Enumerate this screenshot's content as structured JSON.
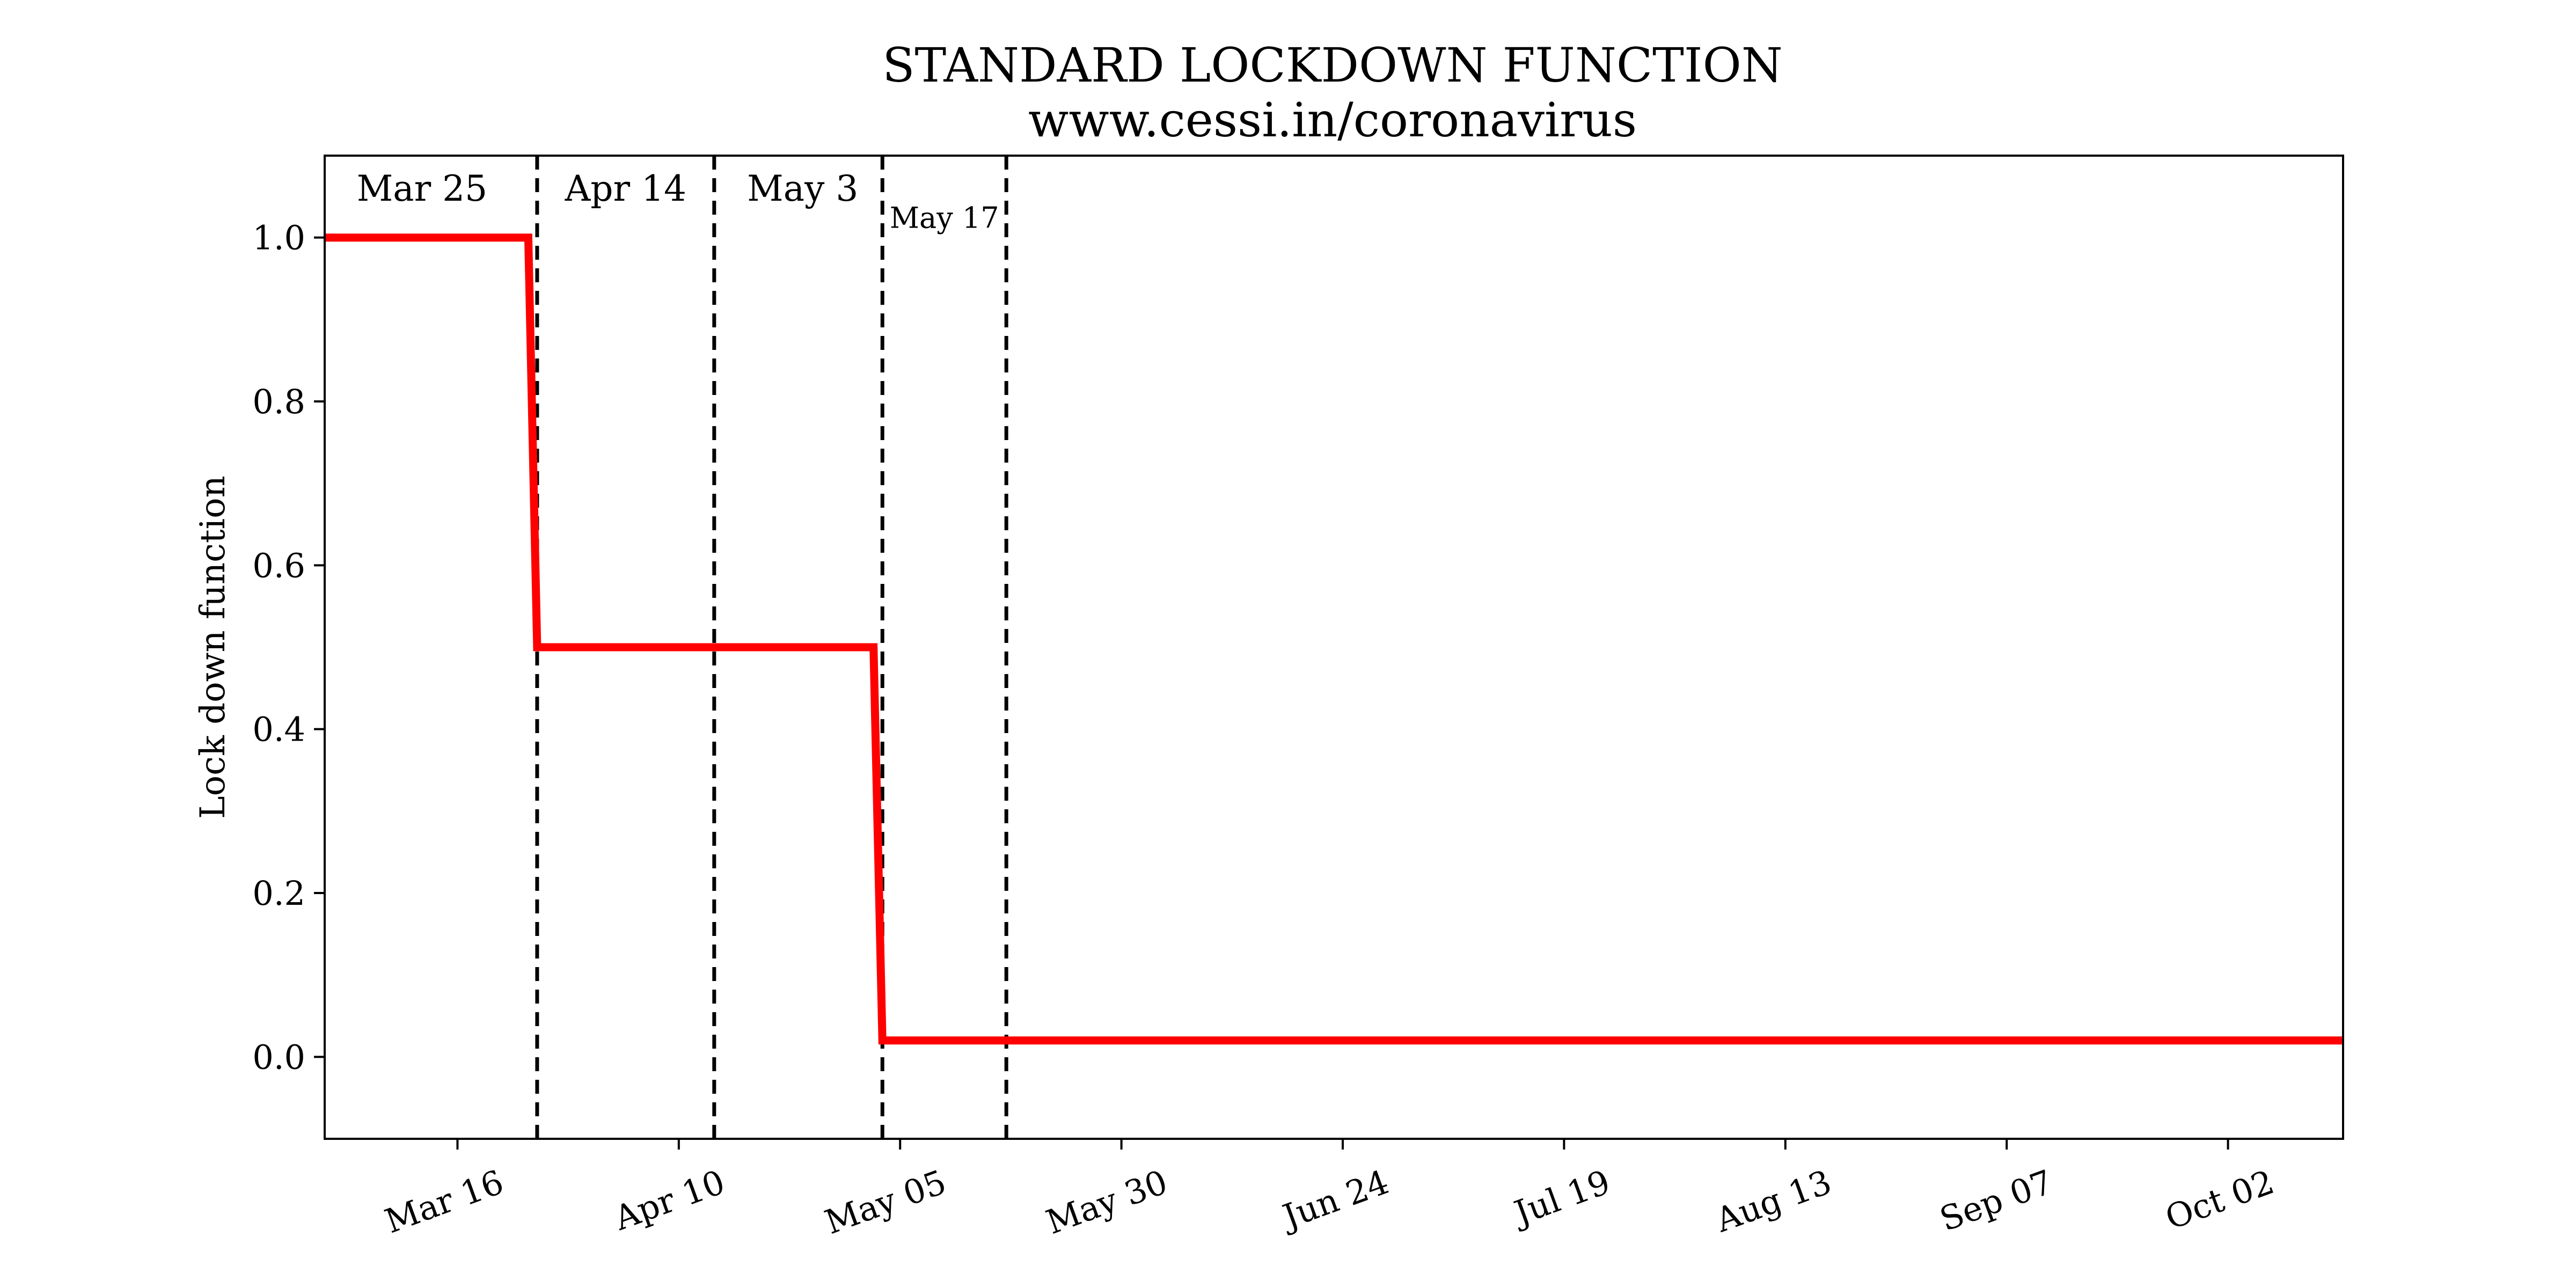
{
  "chart_data": {
    "type": "line",
    "title": "STANDARD LOCKDOWN FUNCTION",
    "subtitle": "www.cessi.in/coronavirus",
    "xlabel": "",
    "ylabel": "Lock down function",
    "x_axis_type": "date",
    "xlim": [
      "2020-03-01",
      "2020-10-15"
    ],
    "ylim": [
      -0.1,
      1.1
    ],
    "x_ticks": [
      "2020-03-16",
      "2020-04-10",
      "2020-05-05",
      "2020-05-30",
      "2020-06-24",
      "2020-07-19",
      "2020-08-13",
      "2020-09-07",
      "2020-10-02"
    ],
    "x_tick_labels": [
      "Mar 16",
      "Apr 10",
      "May 05",
      "May 30",
      "Jun 24",
      "Jul 19",
      "Aug 13",
      "Sep 07",
      "Oct 02"
    ],
    "y_ticks": [
      0.0,
      0.2,
      0.4,
      0.6,
      0.8,
      1.0
    ],
    "y_tick_labels": [
      "0.0",
      "0.2",
      "0.4",
      "0.6",
      "0.8",
      "1.0"
    ],
    "grid": false,
    "series": [
      {
        "color": "#ff0000",
        "x": [
          "2020-03-01",
          "2020-03-24",
          "2020-03-25",
          "2020-05-02",
          "2020-05-03",
          "2020-10-15"
        ],
        "y": [
          1.0,
          1.0,
          0.5,
          0.5,
          0.02,
          0.02
        ]
      }
    ],
    "vlines": [
      {
        "x": "2020-03-25",
        "style": "dashed",
        "color": "#000000"
      },
      {
        "x": "2020-04-14",
        "style": "dashed",
        "color": "#000000"
      },
      {
        "x": "2020-05-03",
        "style": "dashed",
        "color": "#000000"
      },
      {
        "x": "2020-05-17",
        "style": "dashed",
        "color": "#000000"
      }
    ],
    "annotations": [
      {
        "text": "Mar 25",
        "x": "2020-03-12",
        "y": 1.045,
        "size": "normal"
      },
      {
        "text": "Apr 14",
        "x": "2020-04-04",
        "y": 1.045,
        "size": "normal"
      },
      {
        "text": "May 3",
        "x": "2020-04-24",
        "y": 1.045,
        "size": "normal"
      },
      {
        "text": "May 17",
        "x": "2020-05-10",
        "y": 1.012,
        "size": "small"
      }
    ]
  }
}
